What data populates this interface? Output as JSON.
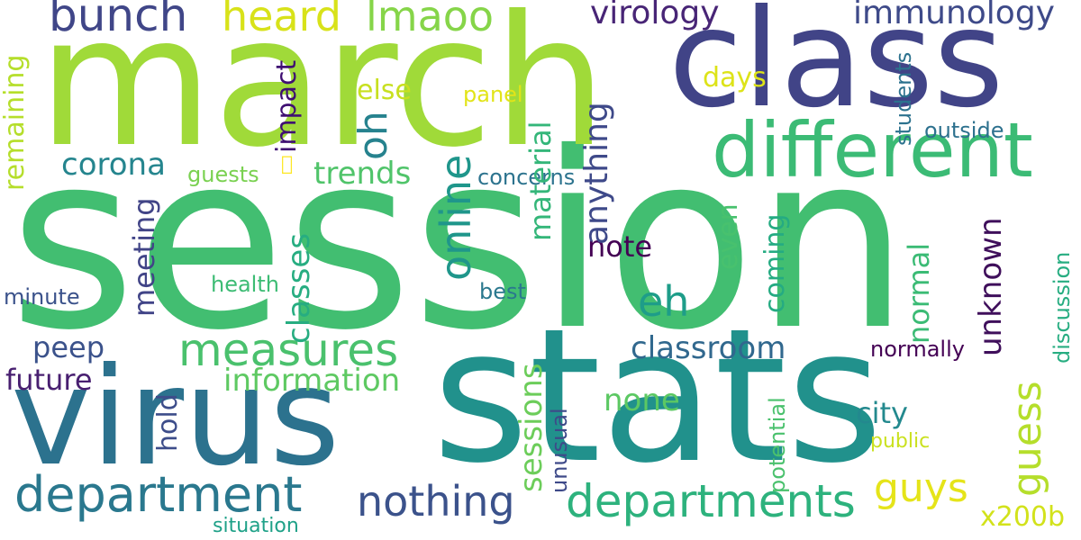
{
  "cloud": {
    "words": [
      {
        "text": "session",
        "color": "#42BE71",
        "cls": "w-session",
        "vertical": false
      },
      {
        "text": "stats",
        "color": "#21918C",
        "cls": "w-stats",
        "vertical": false
      },
      {
        "text": "march",
        "color": "#A0DA39",
        "cls": "w-march",
        "vertical": false
      },
      {
        "text": "virus",
        "color": "#2C728E",
        "cls": "w-virus",
        "vertical": false
      },
      {
        "text": "class",
        "color": "#414487",
        "cls": "w-class",
        "vertical": false
      },
      {
        "text": "different",
        "color": "#3BBB75",
        "cls": "w-different",
        "vertical": false
      },
      {
        "text": "department",
        "color": "#2A788E",
        "cls": "w-department",
        "vertical": false
      },
      {
        "text": "departments",
        "color": "#2DB27D",
        "cls": "w-departments",
        "vertical": false
      },
      {
        "text": "measures",
        "color": "#4AC16D",
        "cls": "w-measures",
        "vertical": false
      },
      {
        "text": "nothing",
        "color": "#3B528B",
        "cls": "w-nothing",
        "vertical": false
      },
      {
        "text": "bunch",
        "color": "#404688",
        "cls": "w-bunch",
        "vertical": false
      },
      {
        "text": "heard",
        "color": "#D8E219",
        "cls": "w-heard",
        "vertical": false
      },
      {
        "text": "lmaoo",
        "color": "#86D549",
        "cls": "w-lmaoo",
        "vertical": false
      },
      {
        "text": "eh",
        "color": "#1E9D89",
        "cls": "w-eh",
        "vertical": false
      },
      {
        "text": "guys",
        "color": "#E5E419",
        "cls": "w-guys",
        "vertical": false
      },
      {
        "text": "virology",
        "color": "#482576",
        "cls": "w-virology",
        "vertical": false
      },
      {
        "text": "immunology",
        "color": "#3E4A89",
        "cls": "w-immunology",
        "vertical": false
      },
      {
        "text": "corona",
        "color": "#25858E",
        "cls": "w-corona",
        "vertical": false
      },
      {
        "text": "classroom",
        "color": "#31688E",
        "cls": "w-classroom",
        "vertical": false
      },
      {
        "text": "information",
        "color": "#5EC962",
        "cls": "w-information",
        "vertical": false
      },
      {
        "text": "trends",
        "color": "#50C46A",
        "cls": "w-trends",
        "vertical": false
      },
      {
        "text": "none",
        "color": "#5CC863",
        "cls": "w-none",
        "vertical": false
      },
      {
        "text": "note",
        "color": "#440154",
        "cls": "w-note",
        "vertical": false
      },
      {
        "text": "city",
        "color": "#23898E",
        "cls": "w-city",
        "vertical": false
      },
      {
        "text": "peep",
        "color": "#3B528B",
        "cls": "w-peep",
        "vertical": false
      },
      {
        "text": "future",
        "color": "#481F70",
        "cls": "w-future",
        "vertical": false
      },
      {
        "text": "else",
        "color": "#C8E020",
        "cls": "w-else",
        "vertical": false
      },
      {
        "text": "days",
        "color": "#DDE318",
        "cls": "w-days",
        "vertical": false
      },
      {
        "text": "x200b",
        "color": "#D2E21B",
        "cls": "w-x200b",
        "vertical": false
      },
      {
        "text": "outside",
        "color": "#2D718E",
        "cls": "w-outside",
        "vertical": false
      },
      {
        "text": "concerns",
        "color": "#2C738E",
        "cls": "w-concerns",
        "vertical": false
      },
      {
        "text": "normally",
        "color": "#440154",
        "cls": "w-normally",
        "vertical": false
      },
      {
        "text": "minute",
        "color": "#3B528B",
        "cls": "w-minute",
        "vertical": false
      },
      {
        "text": "health",
        "color": "#3DBC74",
        "cls": "w-health",
        "vertical": false
      },
      {
        "text": "best",
        "color": "#2A788E",
        "cls": "w-best",
        "vertical": false
      },
      {
        "text": "guests",
        "color": "#7AD151",
        "cls": "w-guests",
        "vertical": false
      },
      {
        "text": "panel",
        "color": "#E2E418",
        "cls": "w-panel",
        "vertical": false
      },
      {
        "text": "public",
        "color": "#CAE11F",
        "cls": "w-public",
        "vertical": false
      },
      {
        "text": "situation",
        "color": "#1FA188",
        "cls": "w-situation",
        "vertical": false
      },
      {
        "text": "􏿾",
        "color": "#FDE725",
        "cls": "w-sym",
        "vertical": false
      },
      {
        "text": "online",
        "color": "#1F968B",
        "cls": "w-online",
        "vertical": true
      },
      {
        "text": "oh",
        "color": "#26828E",
        "cls": "w-oh",
        "vertical": true
      },
      {
        "text": "guess",
        "color": "#B5DE2B",
        "cls": "w-guess",
        "vertical": true
      },
      {
        "text": "anything",
        "color": "#3E4989",
        "cls": "w-anything",
        "vertical": true
      },
      {
        "text": "unknown",
        "color": "#3F0F5B",
        "cls": "w-unknown",
        "vertical": true
      },
      {
        "text": "sessions",
        "color": "#6CCD5A",
        "cls": "w-sessions",
        "vertical": true
      },
      {
        "text": "classes",
        "color": "#27AD81",
        "cls": "w-classes",
        "vertical": true
      },
      {
        "text": "material",
        "color": "#34B679",
        "cls": "w-material",
        "vertical": true
      },
      {
        "text": "meeting",
        "color": "#414487",
        "cls": "w-meeting",
        "vertical": true
      },
      {
        "text": "normal",
        "color": "#3BBB75",
        "cls": "w-normal",
        "vertical": true
      },
      {
        "text": "remaining",
        "color": "#B5DE2B",
        "cls": "w-remaining",
        "vertical": true
      },
      {
        "text": "impact",
        "color": "#3F0F72",
        "cls": "w-impact",
        "vertical": true
      },
      {
        "text": "coming",
        "color": "#25AB82",
        "cls": "w-coming",
        "vertical": true
      },
      {
        "text": "even",
        "color": "#48C16E",
        "cls": "w-even",
        "vertical": true
      },
      {
        "text": "hold",
        "color": "#3D4D8A",
        "cls": "w-hold",
        "vertical": true
      },
      {
        "text": "discussion",
        "color": "#27AD81",
        "cls": "w-discussion",
        "vertical": true
      },
      {
        "text": "students",
        "color": "#2C728E",
        "cls": "w-students",
        "vertical": true
      },
      {
        "text": "potential",
        "color": "#4AC16D",
        "cls": "w-potential",
        "vertical": true
      },
      {
        "text": "unusual",
        "color": "#3E4A89",
        "cls": "w-unusual",
        "vertical": true
      }
    ]
  }
}
